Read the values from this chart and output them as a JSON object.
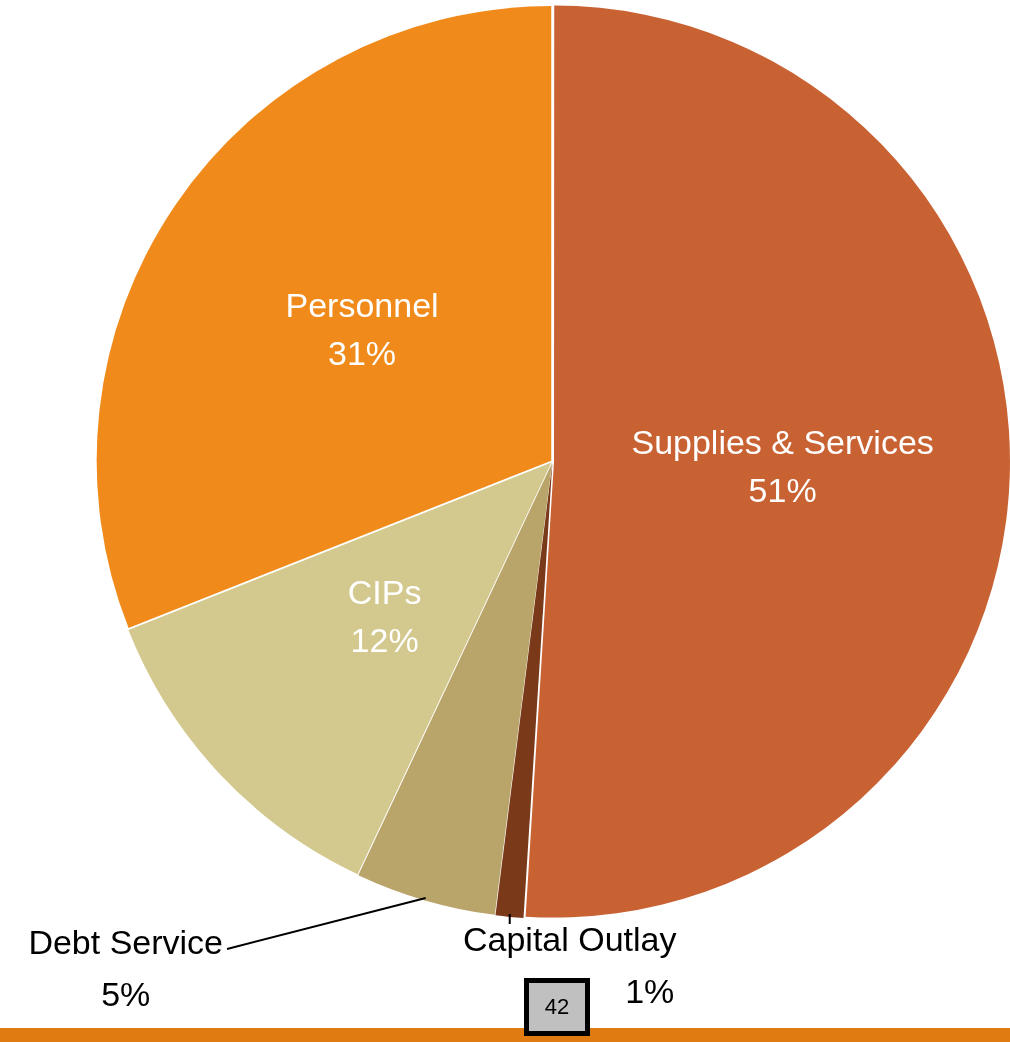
{
  "chart_data": {
    "type": "pie",
    "categories": [
      "Supplies & Services",
      "Capital Outlay",
      "Debt Service",
      "CIPs",
      "Personnel"
    ],
    "values": [
      51,
      1,
      5,
      12,
      31
    ],
    "value_labels": [
      "51%",
      "1%",
      "5%",
      "12%",
      "31%"
    ],
    "colors": [
      "#c96233",
      "#7a3a1a",
      "#b9a46a",
      "#d3c98e",
      "#f08a1a"
    ],
    "legend": false,
    "annotations": [
      "42"
    ]
  }
}
